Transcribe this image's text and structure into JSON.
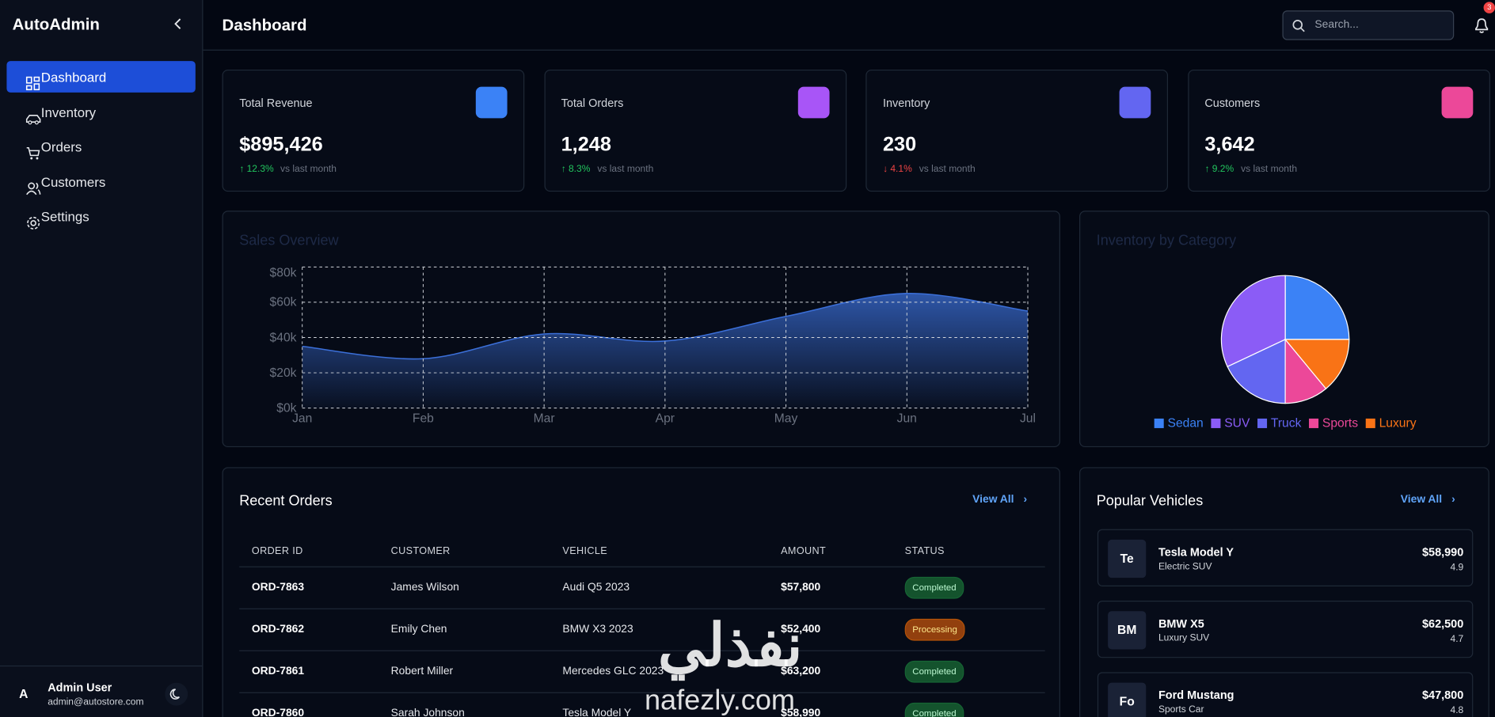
{
  "sidebar": {
    "brand": "AutoAdmin",
    "nav": [
      "Dashboard",
      "Inventory",
      "Orders",
      "Customers",
      "Settings"
    ],
    "user": {
      "avatar": "A",
      "name": "Admin User",
      "email": "admin@autostore.com"
    }
  },
  "header": {
    "title": "Dashboard",
    "search_placeholder": "Search...",
    "notifications": "3"
  },
  "stats": [
    {
      "title": "Total Revenue",
      "value": "$895,426",
      "change": "↑ 12.3%",
      "note": "vs last month",
      "change_color": "#22c55e",
      "icon_color": "#3b82f6"
    },
    {
      "title": "Total Orders",
      "value": "1,248",
      "change": "↑ 8.3%",
      "note": "vs last month",
      "change_color": "#22c55e",
      "icon_color": "#a855f7"
    },
    {
      "title": "Inventory",
      "value": "230",
      "change": "↓ 4.1%",
      "note": "vs last month",
      "change_color": "#ef4444",
      "icon_color": "#6366f1"
    },
    {
      "title": "Customers",
      "value": "3,642",
      "change": "↑ 9.2%",
      "note": "vs last month",
      "change_color": "#22c55e",
      "icon_color": "#ec4899"
    }
  ],
  "chart_data": [
    {
      "type": "area",
      "title": "Sales Overview",
      "categories": [
        "Jan",
        "Feb",
        "Mar",
        "Apr",
        "May",
        "Jun",
        "Jul"
      ],
      "values": [
        35000,
        28000,
        42000,
        38000,
        52000,
        65000,
        55000
      ],
      "color": "#3b6fd8",
      "ylim": [
        0,
        80000
      ],
      "yticks": [
        {
          "value": 0,
          "label": "$0k"
        },
        {
          "value": 20000,
          "label": "$20k"
        },
        {
          "value": 40000,
          "label": "$40k"
        },
        {
          "value": 60000,
          "label": "$60k"
        },
        {
          "value": 80000,
          "label": "$80k"
        }
      ],
      "grid": true
    },
    {
      "type": "pie",
      "title": "Inventory by Category",
      "categories": [
        "Sedan",
        "SUV",
        "Truck",
        "Sports",
        "Luxury"
      ],
      "values": [
        25,
        32,
        18,
        11,
        14
      ],
      "colors": [
        "#3b82f6",
        "#8b5cf6",
        "#6366f1",
        "#ec4899",
        "#f97316"
      ]
    }
  ],
  "orders": {
    "title": "Recent Orders",
    "view_all": "View All",
    "columns": [
      "ORDER ID",
      "CUSTOMER",
      "VEHICLE",
      "AMOUNT",
      "STATUS"
    ],
    "rows": [
      [
        "ORD-7863",
        "James Wilson",
        "Audi Q5 2023",
        "$57,800",
        "Completed"
      ],
      [
        "ORD-7862",
        "Emily Chen",
        "BMW X3 2023",
        "$52,400",
        "Processing"
      ],
      [
        "ORD-7861",
        "Robert Miller",
        "Mercedes GLC 2023",
        "$63,200",
        "Completed"
      ],
      [
        "ORD-7860",
        "Sarah Johnson",
        "Tesla Model Y",
        "$58,990",
        "Completed"
      ]
    ],
    "status_colors": [
      "green",
      "amber",
      "green",
      "green"
    ]
  },
  "vehicles": {
    "title": "Popular Vehicles",
    "view_all": "View All",
    "items": [
      {
        "badge": "Te",
        "name": "Tesla Model Y",
        "type": "Electric SUV",
        "price": "$58,990",
        "rating": 4.9
      },
      {
        "badge": "BM",
        "name": "BMW X5",
        "type": "Luxury SUV",
        "price": "$62,500",
        "rating": 4.7
      },
      {
        "badge": "Fo",
        "name": "Ford Mustang",
        "type": "Sports Car",
        "price": "$47,800",
        "rating": 4.8
      }
    ]
  },
  "watermark": {
    "arabic": "نفذلي",
    "latin": "nafezly.com"
  }
}
